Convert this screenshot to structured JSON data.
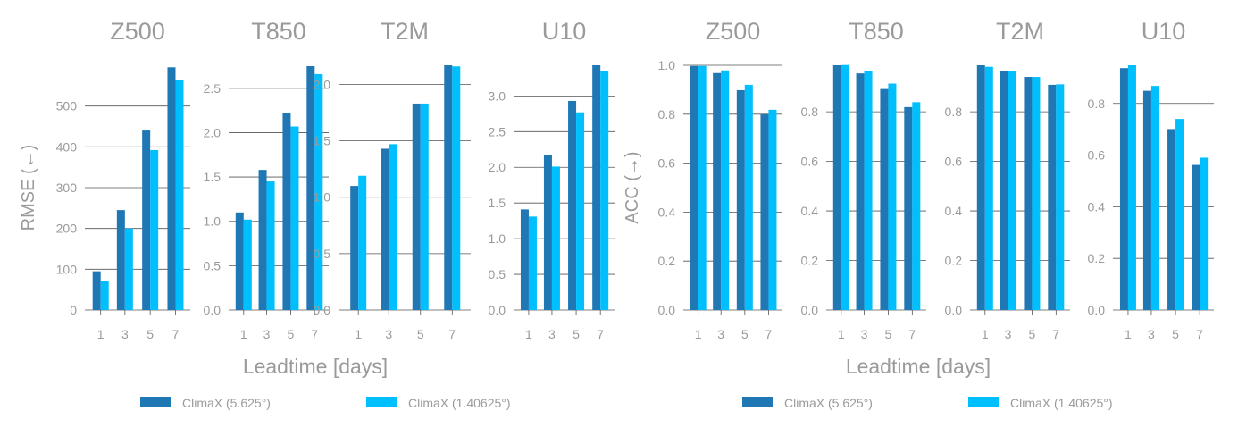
{
  "figure": {
    "groups": [
      {
        "ylabel": "RMSE (←)",
        "xlabel": "Leadtime [days]",
        "legend": [
          "ClimaX (5.625°)",
          "ClimaX (1.40625°)"
        ]
      },
      {
        "ylabel": "ACC (→)",
        "xlabel": "Leadtime [days]",
        "legend": [
          "ClimaX (5.625°)",
          "ClimaX (1.40625°)"
        ]
      }
    ]
  },
  "colors": {
    "series_a": "#1f77b4",
    "series_b": "#00bfff",
    "text": "#9a9a9a",
    "grid": "#555555"
  },
  "chart_data": [
    {
      "type": "bar",
      "title": "Z500",
      "categories": [
        "1",
        "3",
        "5",
        "7"
      ],
      "series": [
        {
          "name": "ClimaX (5.625°)",
          "values": [
            95,
            245,
            440,
            595
          ]
        },
        {
          "name": "ClimaX (1.40625°)",
          "values": [
            72,
            200,
            392,
            565
          ]
        }
      ],
      "ylim": [
        0,
        600
      ],
      "yticks": [
        0,
        100,
        200,
        300,
        400,
        500
      ],
      "ytick_labels": [
        "0",
        "100",
        "200",
        "300",
        "400",
        "500"
      ],
      "grid": true,
      "ylabel": "RMSE (←)",
      "xlabel": "Leadtime [days]"
    },
    {
      "type": "bar",
      "title": "T850",
      "categories": [
        "1",
        "3",
        "5",
        "7"
      ],
      "series": [
        {
          "name": "ClimaX (5.625°)",
          "values": [
            1.1,
            1.58,
            2.22,
            2.75
          ]
        },
        {
          "name": "ClimaX (1.40625°)",
          "values": [
            1.02,
            1.45,
            2.07,
            2.66
          ]
        }
      ],
      "ylim": [
        0,
        2.76
      ],
      "yticks": [
        0,
        0.5,
        1.0,
        1.5,
        2.0,
        2.5
      ],
      "ytick_labels": [
        "0.0",
        "0.5",
        "1.0",
        "1.5",
        "2.0",
        "2.5"
      ],
      "grid": true,
      "ylabel": "RMSE (←)",
      "xlabel": "Leadtime [days]"
    },
    {
      "type": "bar",
      "title": "T2M",
      "categories": [
        "1",
        "3",
        "5",
        "7"
      ],
      "series": [
        {
          "name": "ClimaX (5.625°)",
          "values": [
            1.1,
            1.43,
            1.83,
            2.17
          ]
        },
        {
          "name": "ClimaX (1.40625°)",
          "values": [
            1.19,
            1.47,
            1.83,
            2.16
          ]
        }
      ],
      "ylim": [
        0,
        2.17
      ],
      "yticks": [
        0,
        0.5,
        1.0,
        1.5,
        2.0
      ],
      "ytick_labels": [
        "0.0",
        "0.5",
        "1.0",
        "1.5",
        "2.0"
      ],
      "grid": true,
      "ylabel": "RMSE (←)",
      "xlabel": "Leadtime [days]"
    },
    {
      "type": "bar",
      "title": "U10",
      "categories": [
        "1",
        "3",
        "5",
        "7"
      ],
      "series": [
        {
          "name": "ClimaX (5.625°)",
          "values": [
            1.41,
            2.17,
            2.93,
            3.43
          ]
        },
        {
          "name": "ClimaX (1.40625°)",
          "values": [
            1.31,
            2.01,
            2.77,
            3.35
          ]
        }
      ],
      "ylim": [
        0,
        3.43
      ],
      "yticks": [
        0,
        0.5,
        1.0,
        1.5,
        2.0,
        2.5,
        3.0
      ],
      "ytick_labels": [
        "0.0",
        "0.5",
        "1.0",
        "1.5",
        "2.0",
        "2.5",
        "3.0"
      ],
      "grid": true,
      "ylabel": "RMSE (←)",
      "xlabel": "Leadtime [days]"
    },
    {
      "type": "bar",
      "title": "Z500",
      "categories": [
        "1",
        "3",
        "5",
        "7"
      ],
      "series": [
        {
          "name": "ClimaX (5.625°)",
          "values": [
            0.997,
            0.968,
            0.898,
            0.799
          ]
        },
        {
          "name": "ClimaX (1.40625°)",
          "values": [
            0.997,
            0.979,
            0.92,
            0.818
          ]
        }
      ],
      "ylim": [
        0,
        1.0
      ],
      "yticks": [
        0,
        0.2,
        0.4,
        0.6,
        0.8,
        1.0
      ],
      "ytick_labels": [
        "0.0",
        "0.2",
        "0.4",
        "0.6",
        "0.8",
        "1.0"
      ],
      "grid": true,
      "ylabel": "ACC (→)",
      "xlabel": "Leadtime [days]"
    },
    {
      "type": "bar",
      "title": "T850",
      "categories": [
        "1",
        "3",
        "5",
        "7"
      ],
      "series": [
        {
          "name": "ClimaX (5.625°)",
          "values": [
            0.988,
            0.955,
            0.892,
            0.819
          ]
        },
        {
          "name": "ClimaX (1.40625°)",
          "values": [
            0.989,
            0.966,
            0.914,
            0.839
          ]
        }
      ],
      "ylim": [
        0,
        0.988
      ],
      "yticks": [
        0,
        0.2,
        0.4,
        0.6,
        0.8
      ],
      "ytick_labels": [
        "0.0",
        "0.2",
        "0.4",
        "0.6",
        "0.8"
      ],
      "grid": true,
      "ylabel": "ACC (→)",
      "xlabel": "Leadtime [days]"
    },
    {
      "type": "bar",
      "title": "T2M",
      "categories": [
        "1",
        "3",
        "5",
        "7"
      ],
      "series": [
        {
          "name": "ClimaX (5.625°)",
          "values": [
            0.988,
            0.966,
            0.941,
            0.909
          ]
        },
        {
          "name": "ClimaX (1.40625°)",
          "values": [
            0.982,
            0.966,
            0.941,
            0.911
          ]
        }
      ],
      "ylim": [
        0,
        0.988
      ],
      "yticks": [
        0,
        0.2,
        0.4,
        0.6,
        0.8
      ],
      "ytick_labels": [
        "0.0",
        "0.2",
        "0.4",
        "0.6",
        "0.8"
      ],
      "grid": true,
      "ylabel": "ACC (→)",
      "xlabel": "Leadtime [days]"
    },
    {
      "type": "bar",
      "title": "U10",
      "categories": [
        "1",
        "3",
        "5",
        "7"
      ],
      "series": [
        {
          "name": "ClimaX (5.625°)",
          "values": [
            0.937,
            0.849,
            0.701,
            0.562
          ]
        },
        {
          "name": "ClimaX (1.40625°)",
          "values": [
            0.948,
            0.868,
            0.74,
            0.59
          ]
        }
      ],
      "ylim": [
        0,
        0.948
      ],
      "yticks": [
        0,
        0.2,
        0.4,
        0.6,
        0.8
      ],
      "ytick_labels": [
        "0.0",
        "0.2",
        "0.4",
        "0.6",
        "0.8"
      ],
      "grid": true,
      "ylabel": "ACC (→)",
      "xlabel": "Leadtime [days]"
    }
  ]
}
